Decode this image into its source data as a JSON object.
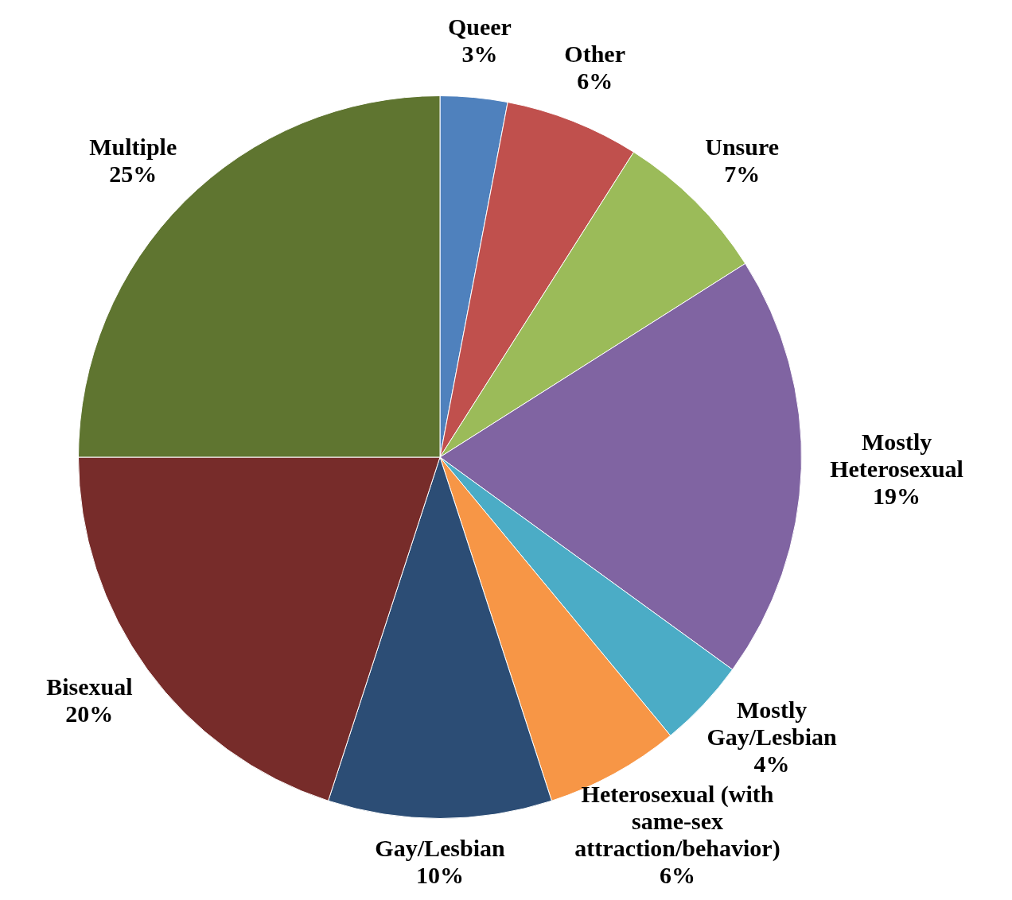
{
  "chart_data": {
    "type": "pie",
    "categories": [
      "Queer",
      "Other",
      "Unsure",
      "Mostly Heterosexual",
      "Mostly Gay/Lesbian",
      "Heterosexual (with same-sex attraction/behavior)",
      "Gay/Lesbian",
      "Bisexual",
      "Multiple"
    ],
    "values": [
      3,
      6,
      7,
      19,
      4,
      6,
      10,
      20,
      25
    ],
    "value_labels": [
      "3%",
      "6%",
      "7%",
      "19%",
      "4%",
      "6%",
      "10%",
      "20%",
      "25%"
    ],
    "colors": [
      "#4f81bd",
      "#c0504d",
      "#9bbb59",
      "#8064a2",
      "#4bacc6",
      "#f79646",
      "#2c4d75",
      "#772c2a",
      "#5f7530"
    ],
    "legend": false
  }
}
